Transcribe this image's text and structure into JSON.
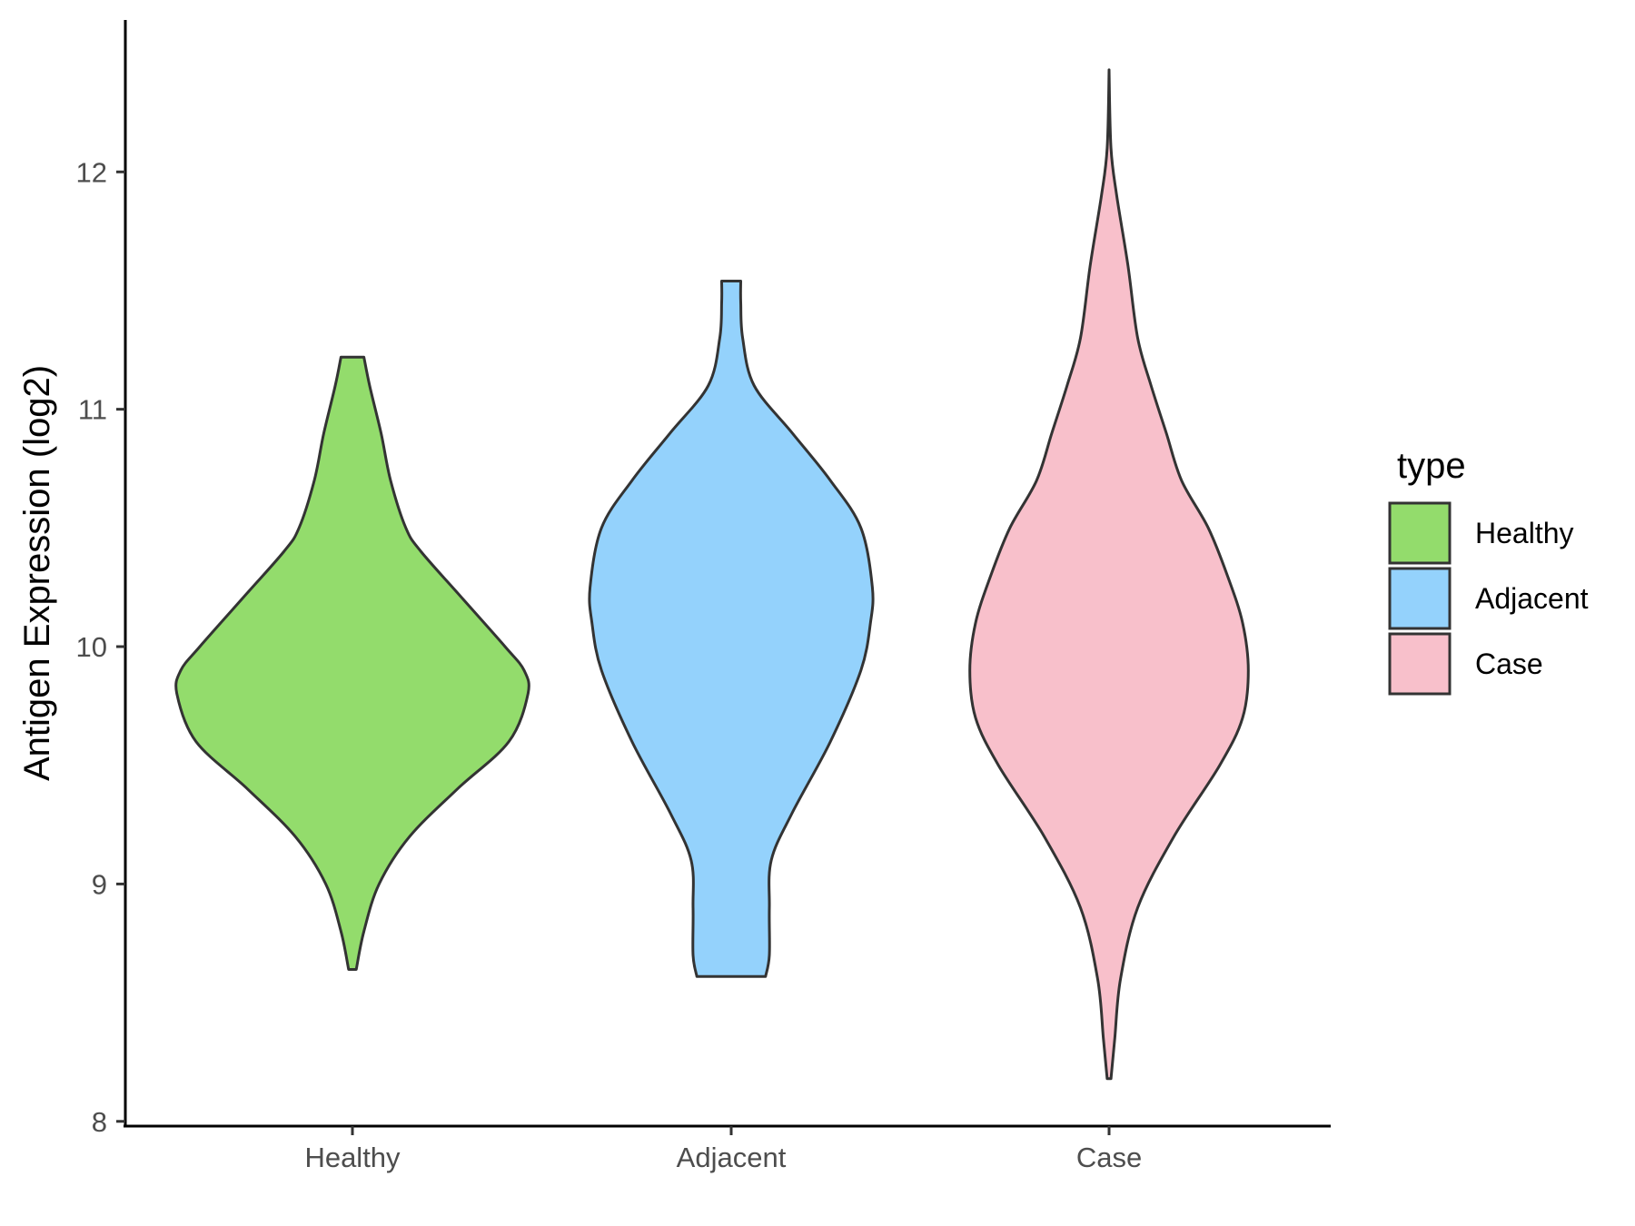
{
  "chart_data": {
    "type": "violin",
    "title": "",
    "xlabel": "",
    "ylabel": "Antigen Expression (log2)",
    "ylim": [
      7.98,
      12.64
    ],
    "yticks": [
      8,
      9,
      10,
      11,
      12
    ],
    "categories": [
      "Healthy",
      "Adjacent",
      "Case"
    ],
    "legend": {
      "title": "type",
      "position": "right",
      "entries": [
        "Healthy",
        "Adjacent",
        "Case"
      ]
    },
    "grid": false,
    "series": [
      {
        "name": "Healthy",
        "color": "#93dc6c",
        "min": 8.64,
        "max": 11.22,
        "density": [
          [
            8.64,
            0.02
          ],
          [
            8.8,
            0.06
          ],
          [
            9.0,
            0.14
          ],
          [
            9.2,
            0.3
          ],
          [
            9.4,
            0.55
          ],
          [
            9.6,
            0.82
          ],
          [
            9.8,
            0.92
          ],
          [
            9.9,
            0.9
          ],
          [
            10.0,
            0.8
          ],
          [
            10.2,
            0.58
          ],
          [
            10.4,
            0.36
          ],
          [
            10.5,
            0.28
          ],
          [
            10.7,
            0.2
          ],
          [
            10.9,
            0.15
          ],
          [
            11.1,
            0.09
          ],
          [
            11.22,
            0.06
          ]
        ]
      },
      {
        "name": "Adjacent",
        "color": "#94d2fc",
        "min": 8.61,
        "max": 11.54,
        "density": [
          [
            8.61,
            0.18
          ],
          [
            8.7,
            0.2
          ],
          [
            8.9,
            0.2
          ],
          [
            9.1,
            0.21
          ],
          [
            9.3,
            0.32
          ],
          [
            9.6,
            0.52
          ],
          [
            9.9,
            0.68
          ],
          [
            10.1,
            0.73
          ],
          [
            10.25,
            0.74
          ],
          [
            10.5,
            0.68
          ],
          [
            10.7,
            0.52
          ],
          [
            10.9,
            0.32
          ],
          [
            11.1,
            0.12
          ],
          [
            11.3,
            0.06
          ],
          [
            11.45,
            0.05
          ],
          [
            11.54,
            0.05
          ]
        ]
      },
      {
        "name": "Case",
        "color": "#f8c0cb",
        "min": 8.18,
        "max": 12.43,
        "density": [
          [
            8.18,
            0.01
          ],
          [
            8.35,
            0.03
          ],
          [
            8.6,
            0.06
          ],
          [
            8.9,
            0.15
          ],
          [
            9.2,
            0.34
          ],
          [
            9.5,
            0.58
          ],
          [
            9.7,
            0.7
          ],
          [
            9.9,
            0.73
          ],
          [
            10.1,
            0.7
          ],
          [
            10.3,
            0.62
          ],
          [
            10.5,
            0.52
          ],
          [
            10.7,
            0.38
          ],
          [
            10.9,
            0.3
          ],
          [
            11.1,
            0.22
          ],
          [
            11.3,
            0.15
          ],
          [
            11.6,
            0.1
          ],
          [
            11.9,
            0.04
          ],
          [
            12.1,
            0.01
          ],
          [
            12.43,
            0.0
          ]
        ]
      }
    ]
  }
}
